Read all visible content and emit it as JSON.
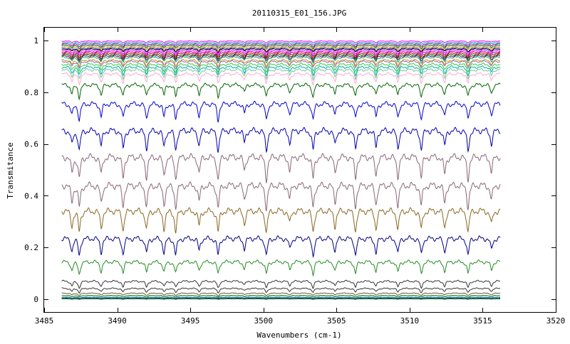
{
  "chart_data": {
    "type": "line",
    "title": "20110315_E01_156.JPG",
    "xlabel": "Wavenumbers (cm-1)",
    "ylabel": "Transmitance",
    "xlim": [
      3485,
      3520
    ],
    "ylim": [
      -0.05,
      1.05
    ],
    "xticks": [
      3485,
      3490,
      3495,
      3500,
      3505,
      3510,
      3515,
      3520
    ],
    "xtick_labels": [
      "3485",
      "3490",
      "3495",
      "3500",
      "3505",
      "3510",
      "3515",
      "3520"
    ],
    "yticks": [
      0,
      0.2,
      0.4,
      0.6,
      0.8,
      1
    ],
    "ytick_labels": [
      "0",
      "0.2",
      "0.4",
      "0.6",
      "0.8",
      "1"
    ],
    "grid": false,
    "legend": "none",
    "x_range": [
      3486.2,
      3516.2
    ],
    "absorption_line_positions": [
      3486.9,
      3487.4,
      3488.9,
      3490.4,
      3492.0,
      3493.2,
      3494.0,
      3495.6,
      3496.9,
      3498.7,
      3500.2,
      3501.8,
      3503.4,
      3504.9,
      3506.3,
      3507.7,
      3509.2,
      3510.8,
      3512.4,
      3514.0,
      3515.6
    ],
    "series": [
      {
        "baseline": 1.0,
        "color": "#ff00ff"
      },
      {
        "baseline": 0.995,
        "color": "#00aaaa"
      },
      {
        "baseline": 0.99,
        "color": "#9900cc"
      },
      {
        "baseline": 0.985,
        "color": "#006400"
      },
      {
        "baseline": 0.98,
        "color": "#cc9900"
      },
      {
        "baseline": 0.975,
        "color": "#3333cc"
      },
      {
        "baseline": 0.97,
        "color": "#000000"
      },
      {
        "baseline": 0.965,
        "color": "#ff00ff"
      },
      {
        "baseline": 0.96,
        "color": "#9900cc"
      },
      {
        "baseline": 0.955,
        "color": "#cc0000"
      },
      {
        "baseline": 0.95,
        "color": "#004400"
      },
      {
        "baseline": 0.945,
        "color": "#800040"
      },
      {
        "baseline": 0.94,
        "color": "#00aa88"
      },
      {
        "baseline": 0.93,
        "color": "#cc9900"
      },
      {
        "baseline": 0.925,
        "color": "#9966cc"
      },
      {
        "baseline": 0.915,
        "color": "#33cc33"
      },
      {
        "baseline": 0.905,
        "color": "#00aaaa"
      },
      {
        "baseline": 0.895,
        "color": "#66cc99"
      },
      {
        "baseline": 0.88,
        "color": "#ffaacc"
      },
      {
        "baseline": 0.84,
        "color": "#006400"
      },
      {
        "baseline": 0.77,
        "color": "#0000cc"
      },
      {
        "baseline": 0.67,
        "color": "#0000aa"
      },
      {
        "baseline": 0.57,
        "color": "#886677"
      },
      {
        "baseline": 0.46,
        "color": "#886677"
      },
      {
        "baseline": 0.36,
        "color": "#886622"
      },
      {
        "baseline": 0.25,
        "color": "#000080"
      },
      {
        "baseline": 0.155,
        "color": "#228b22"
      },
      {
        "baseline": 0.075,
        "color": "#333333"
      },
      {
        "baseline": 0.045,
        "color": "#333333"
      },
      {
        "baseline": 0.025,
        "color": "#665533"
      },
      {
        "baseline": 0.015,
        "color": "#006400"
      },
      {
        "baseline": 0.008,
        "color": "#008888"
      },
      {
        "baseline": 0.004,
        "color": "#000080"
      },
      {
        "baseline": 0.001,
        "color": "#228b22"
      }
    ]
  }
}
